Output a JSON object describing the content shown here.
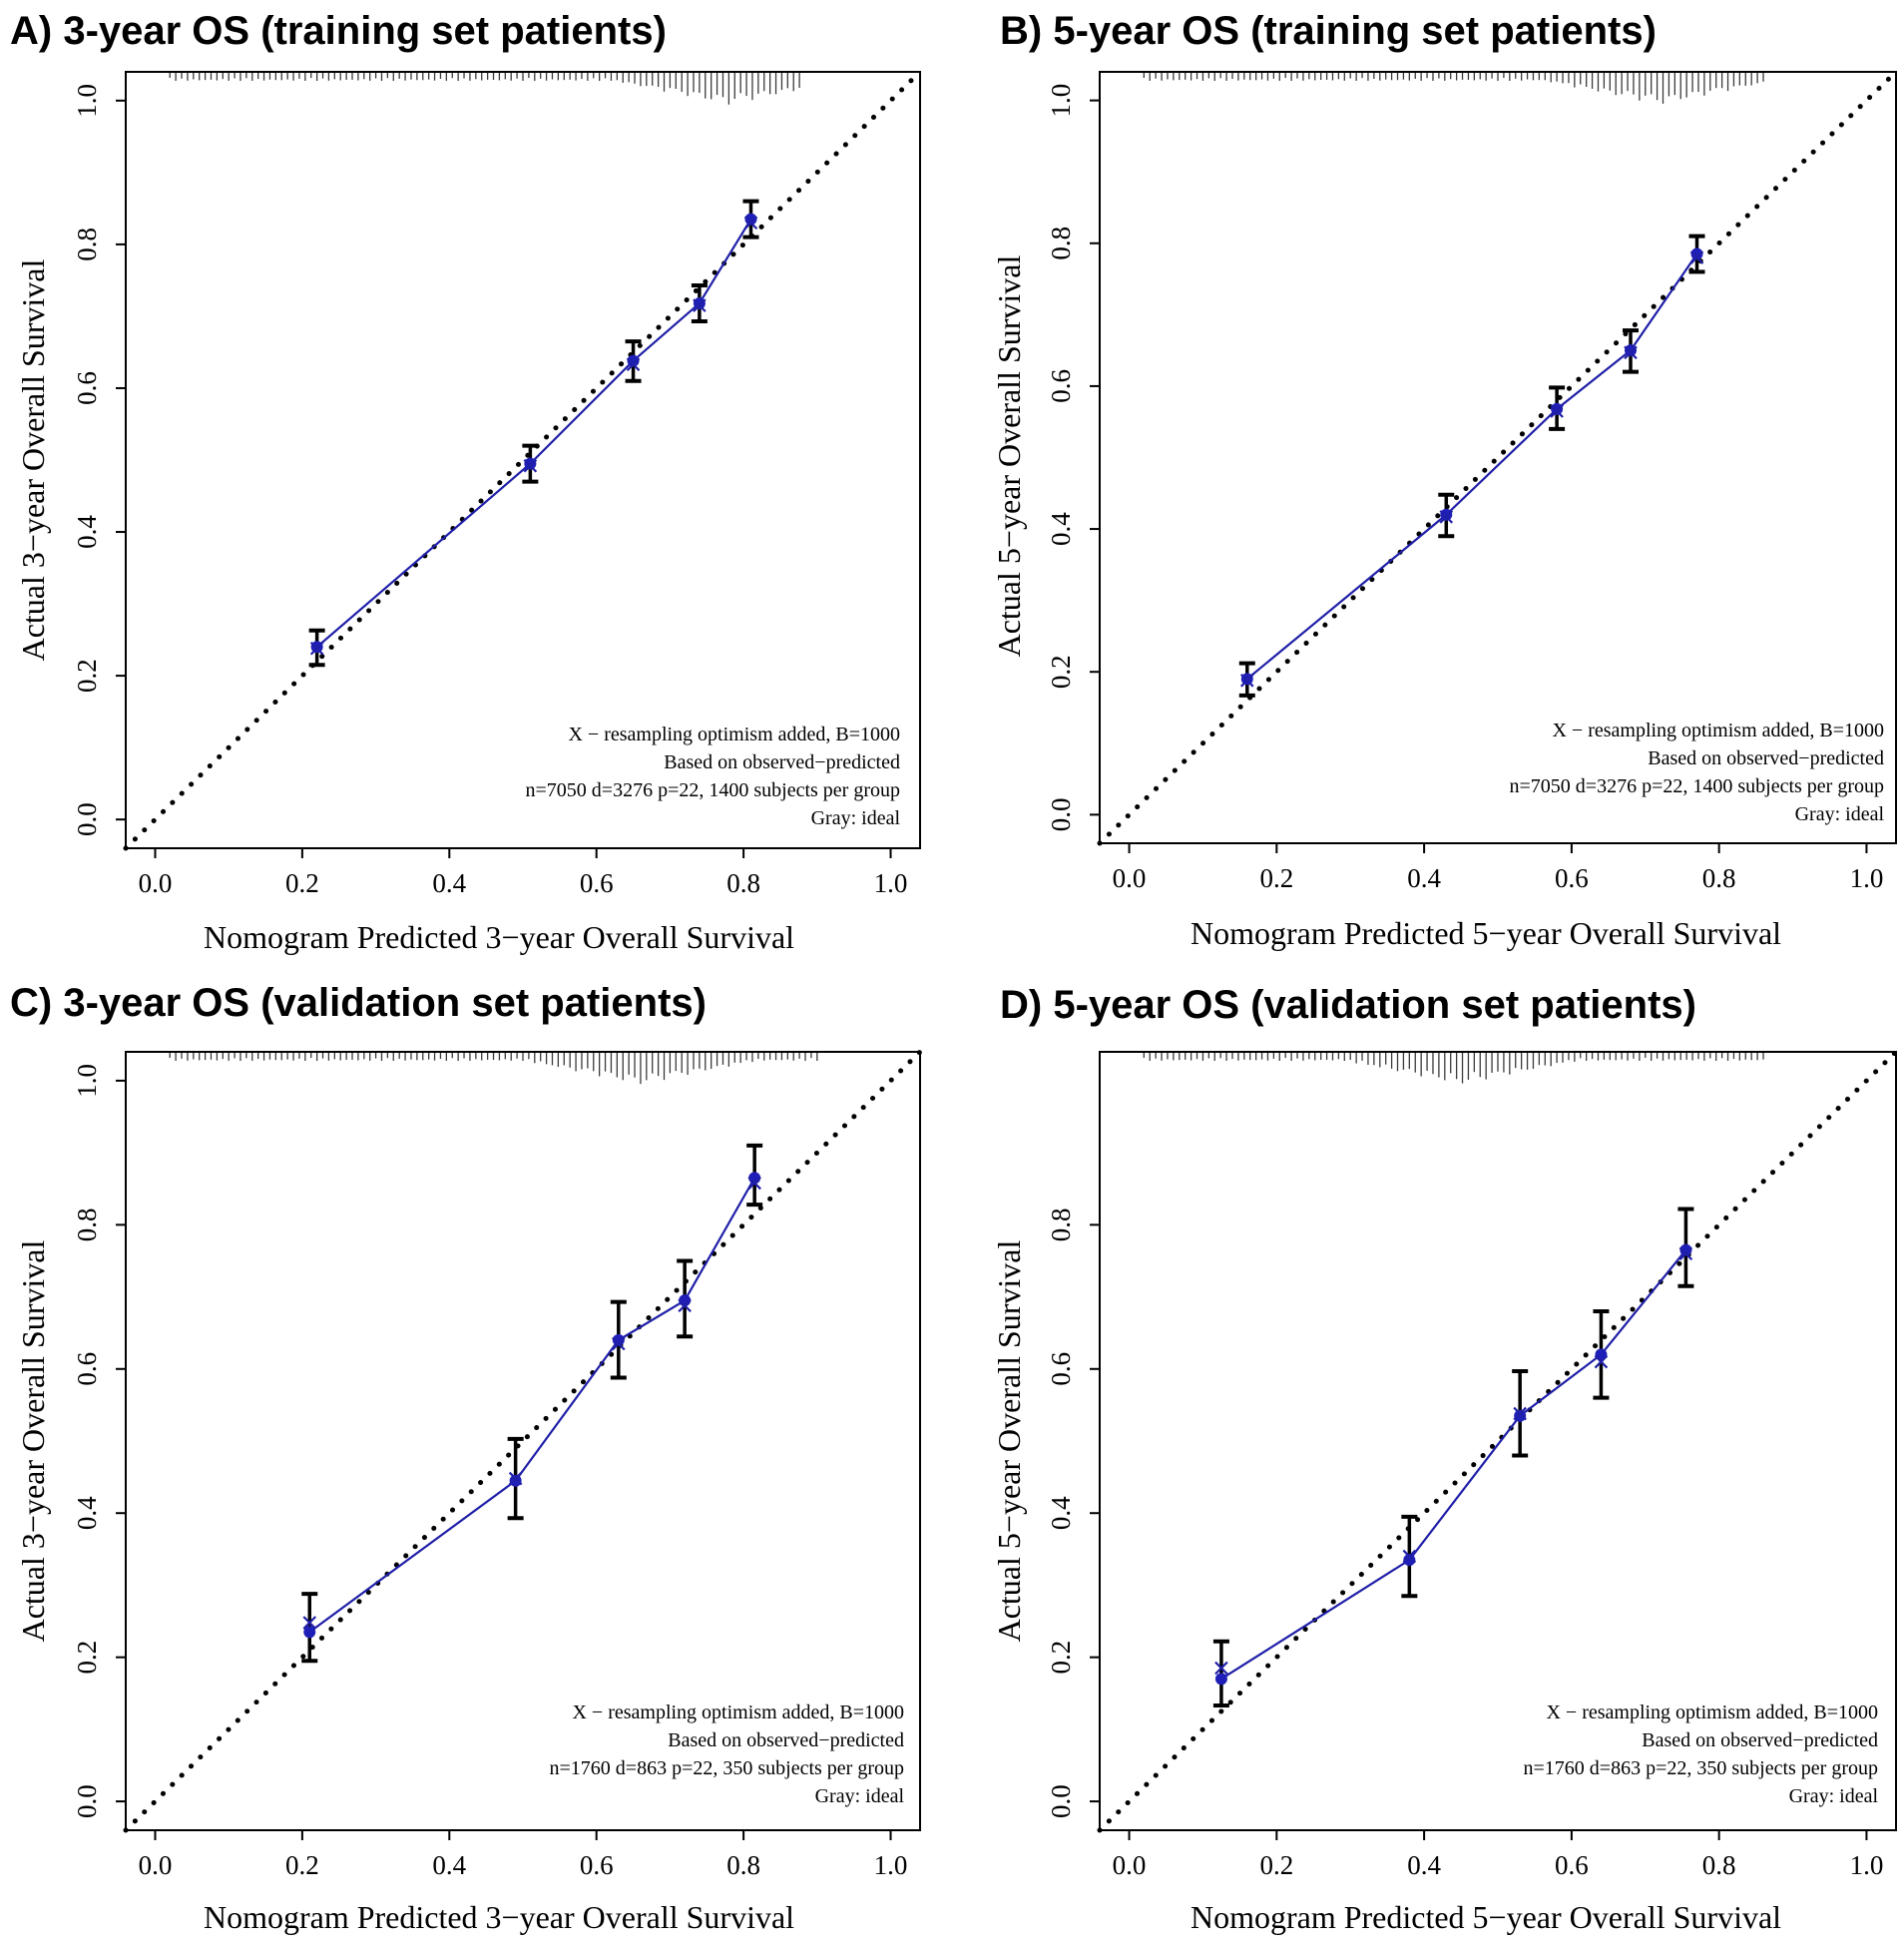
{
  "figure": {
    "colors": {
      "line": "#1f1fa8",
      "point": "#1f1fb8",
      "errorbar": "#000000",
      "ideal": "#000000",
      "frame": "#000000",
      "rug": "#3a3a3a"
    }
  },
  "chart_data": [
    {
      "id": "A",
      "type": "line",
      "title": "A) 3-year OS (training set patients)",
      "xlabel": "Nomogram Predicted 3−year Overall Survival",
      "ylabel": "Actual 3−year Overall Survival",
      "xlim": [
        -0.04,
        1.04
      ],
      "ylim": [
        -0.04,
        1.04
      ],
      "xticks": [
        "0.0",
        "0.2",
        "0.4",
        "0.6",
        "0.8",
        "1.0"
      ],
      "yticks": [
        "0.0",
        "0.2",
        "0.4",
        "0.6",
        "0.8",
        "1.0"
      ],
      "ideal_line": {
        "name": "Gray: ideal",
        "x": [
          -0.04,
          1.04
        ],
        "y": [
          -0.04,
          1.04
        ]
      },
      "series": [
        {
          "name": "observed",
          "x": [
            0.22,
            0.51,
            0.65,
            0.74,
            0.81
          ],
          "y": [
            0.24,
            0.495,
            0.638,
            0.718,
            0.835
          ],
          "ci_low": [
            0.215,
            0.47,
            0.61,
            0.693,
            0.81
          ],
          "ci_high": [
            0.263,
            0.52,
            0.665,
            0.743,
            0.86
          ]
        },
        {
          "name": "X - resampling optimism added, B=1000",
          "x": [
            0.22,
            0.51,
            0.65,
            0.74,
            0.81
          ],
          "y": [
            0.238,
            0.492,
            0.633,
            0.715,
            0.83
          ]
        }
      ],
      "rug": {
        "start": 0.02,
        "end": 0.88,
        "peak": 0.78
      },
      "legend": [
        "X − resampling optimism added, B=1000",
        "Based on observed−predicted",
        "n=7050 d=3276 p=22, 1400 subjects per group",
        "Gray: ideal"
      ],
      "legend_position": "bottom-right"
    },
    {
      "id": "B",
      "type": "line",
      "title": "B) 5-year OS (training set patients)",
      "xlabel": "Nomogram Predicted 5−year Overall Survival",
      "ylabel": "Actual 5−year Overall Survival",
      "xlim": [
        -0.04,
        1.04
      ],
      "ylim": [
        -0.04,
        1.04
      ],
      "xticks": [
        "0.0",
        "0.2",
        "0.4",
        "0.6",
        "0.8",
        "1.0"
      ],
      "yticks": [
        "0.0",
        "0.2",
        "0.4",
        "0.6",
        "0.8",
        "1.0"
      ],
      "ideal_line": {
        "name": "Gray: ideal",
        "x": [
          -0.04,
          1.04
        ],
        "y": [
          -0.04,
          1.04
        ]
      },
      "series": [
        {
          "name": "observed",
          "x": [
            0.16,
            0.43,
            0.58,
            0.68,
            0.77
          ],
          "y": [
            0.19,
            0.42,
            0.568,
            0.65,
            0.785
          ],
          "ci_low": [
            0.167,
            0.39,
            0.54,
            0.62,
            0.76
          ],
          "ci_high": [
            0.212,
            0.448,
            0.598,
            0.678,
            0.81
          ]
        },
        {
          "name": "X - resampling optimism added, B=1000",
          "x": [
            0.16,
            0.43,
            0.58,
            0.68,
            0.77
          ],
          "y": [
            0.188,
            0.417,
            0.565,
            0.647,
            0.78
          ]
        }
      ],
      "rug": {
        "start": 0.02,
        "end": 0.86,
        "peak": 0.72
      },
      "legend": [
        "X − resampling optimism added, B=1000",
        "Based on observed−predicted",
        "n=7050 d=3276 p=22, 1400 subjects per group",
        "Gray: ideal"
      ],
      "legend_position": "bottom-right"
    },
    {
      "id": "C",
      "type": "line",
      "title": "C) 3-year OS (validation set patients)",
      "xlabel": "Nomogram Predicted 3−year Overall Survival",
      "ylabel": "Actual 3−year Overall Survival",
      "xlim": [
        -0.04,
        1.04
      ],
      "ylim": [
        -0.04,
        1.04
      ],
      "xticks": [
        "0.0",
        "0.2",
        "0.4",
        "0.6",
        "0.8",
        "1.0"
      ],
      "yticks": [
        "0.0",
        "0.2",
        "0.4",
        "0.6",
        "0.8",
        "1.0"
      ],
      "ideal_line": {
        "name": "Gray: ideal",
        "x": [
          -0.04,
          1.04
        ],
        "y": [
          -0.04,
          1.04
        ]
      },
      "series": [
        {
          "name": "observed",
          "x": [
            0.21,
            0.49,
            0.63,
            0.72,
            0.815
          ],
          "y": [
            0.235,
            0.445,
            0.64,
            0.695,
            0.865
          ],
          "ci_low": [
            0.195,
            0.393,
            0.588,
            0.645,
            0.828
          ],
          "ci_high": [
            0.288,
            0.503,
            0.693,
            0.75,
            0.91
          ]
        },
        {
          "name": "X - resampling optimism added, B=1000",
          "x": [
            0.21,
            0.49,
            0.63,
            0.72,
            0.815
          ],
          "y": [
            0.248,
            0.448,
            0.635,
            0.688,
            0.858
          ]
        }
      ],
      "rug": {
        "start": 0.02,
        "end": 0.9,
        "peak": 0.66
      },
      "legend": [
        "X − resampling optimism added, B=1000",
        "Based on observed−predicted",
        "n=1760 d=863 p=22, 350 subjects per group",
        "Gray: ideal"
      ],
      "legend_position": "bottom-right"
    },
    {
      "id": "D",
      "type": "line",
      "title": "D) 5-year OS (validation set patients)",
      "xlabel": "Nomogram Predicted 5−year Overall Survival",
      "ylabel": "Actual 5−year Overall Survival",
      "xlim": [
        -0.04,
        1.04
      ],
      "ylim": [
        -0.04,
        1.04
      ],
      "xticks": [
        "0.0",
        "0.2",
        "0.4",
        "0.6",
        "0.8",
        "1.0"
      ],
      "yticks": [
        "0.0",
        "0.2",
        "0.4",
        "0.6",
        "0.8"
      ],
      "ideal_line": {
        "name": "Gray: ideal",
        "x": [
          -0.04,
          1.04
        ],
        "y": [
          -0.04,
          1.04
        ]
      },
      "series": [
        {
          "name": "observed",
          "x": [
            0.125,
            0.38,
            0.53,
            0.64,
            0.755
          ],
          "y": [
            0.17,
            0.335,
            0.535,
            0.62,
            0.765
          ],
          "ci_low": [
            0.133,
            0.285,
            0.48,
            0.56,
            0.715
          ],
          "ci_high": [
            0.222,
            0.395,
            0.597,
            0.68,
            0.822
          ]
        },
        {
          "name": "X - resampling optimism added, B=1000",
          "x": [
            0.125,
            0.38,
            0.53,
            0.64,
            0.755
          ],
          "y": [
            0.185,
            0.34,
            0.538,
            0.61,
            0.76
          ]
        }
      ],
      "rug": {
        "start": 0.02,
        "end": 0.86,
        "peak": 0.45
      },
      "legend": [
        "X − resampling optimism added, B=1000",
        "Based on observed−predicted",
        "n=1760 d=863 p=22, 350 subjects per group",
        "Gray: ideal"
      ],
      "legend_position": "bottom-right"
    }
  ]
}
